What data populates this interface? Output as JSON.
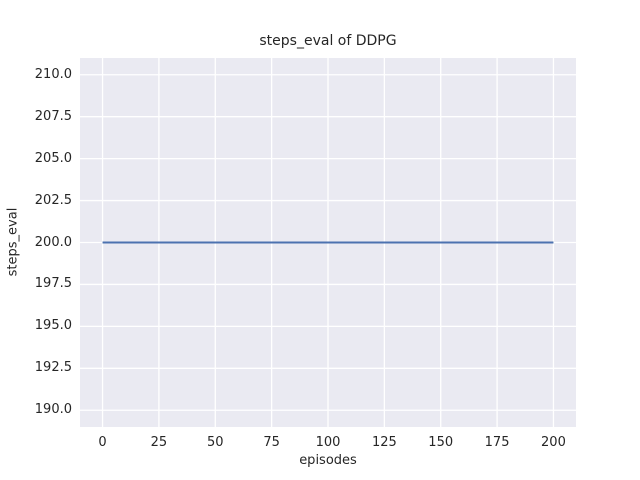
{
  "chart_data": {
    "type": "line",
    "title": "steps_eval of DDPG",
    "xlabel": "episodes",
    "ylabel": "steps_eval",
    "xlim": [
      -10,
      210
    ],
    "ylim": [
      189,
      211
    ],
    "x_ticks": [
      {
        "v": 0,
        "label": "0"
      },
      {
        "v": 25,
        "label": "25"
      },
      {
        "v": 50,
        "label": "50"
      },
      {
        "v": 75,
        "label": "75"
      },
      {
        "v": 100,
        "label": "100"
      },
      {
        "v": 125,
        "label": "125"
      },
      {
        "v": 150,
        "label": "150"
      },
      {
        "v": 175,
        "label": "175"
      },
      {
        "v": 200,
        "label": "200"
      }
    ],
    "y_ticks": [
      {
        "v": 190.0,
        "label": "190.0"
      },
      {
        "v": 192.5,
        "label": "192.5"
      },
      {
        "v": 195.0,
        "label": "195.0"
      },
      {
        "v": 197.5,
        "label": "197.5"
      },
      {
        "v": 200.0,
        "label": "200.0"
      },
      {
        "v": 202.5,
        "label": "202.5"
      },
      {
        "v": 205.0,
        "label": "205.0"
      },
      {
        "v": 207.5,
        "label": "207.5"
      },
      {
        "v": 210.0,
        "label": "210.0"
      }
    ],
    "series": [
      {
        "name": "steps_eval",
        "x": [
          0,
          200
        ],
        "y": [
          200,
          200
        ],
        "color": "#4C72B0",
        "line_width": 2
      }
    ],
    "grid": true,
    "legend": false,
    "plot_background": "#EAEAF2",
    "grid_color": "#FFFFFF",
    "text_color": "#262626",
    "figure_background": "#FFFFFF"
  }
}
